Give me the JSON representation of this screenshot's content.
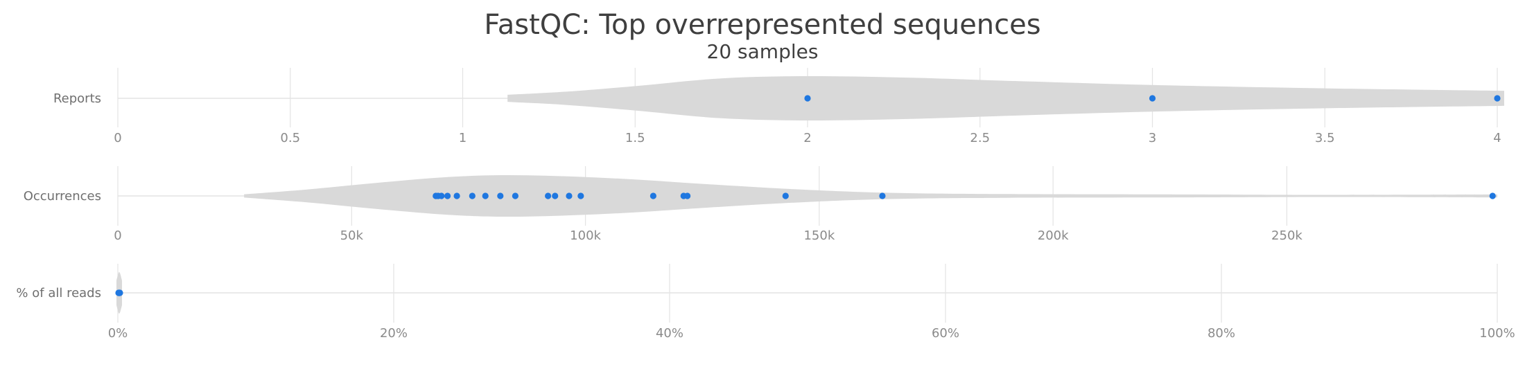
{
  "chart_data": {
    "type": "violin",
    "title": "FastQC: Top overrepresented sequences",
    "subtitle": "20 samples",
    "colors": {
      "point": "#1f77e0",
      "violin": "#d9d9d9",
      "grid": "#e3e3e3",
      "axis_text": "#8a8a8a"
    },
    "panels": [
      {
        "label": "Reports",
        "ticks": [
          0,
          0.5,
          1,
          1.5,
          2,
          2.5,
          3,
          3.5,
          4
        ],
        "tick_labels": [
          "0",
          "0.5",
          "1",
          "1.5",
          "2",
          "2.5",
          "3",
          "3.5",
          "4"
        ],
        "xlim": [
          0,
          4
        ],
        "points": [
          2,
          3,
          4
        ],
        "density": [
          [
            1.13,
            0.16
          ],
          [
            1.3,
            0.3
          ],
          [
            1.5,
            0.55
          ],
          [
            1.75,
            0.9
          ],
          [
            2.0,
            1.0
          ],
          [
            2.3,
            0.93
          ],
          [
            2.6,
            0.78
          ],
          [
            3.0,
            0.6
          ],
          [
            3.5,
            0.45
          ],
          [
            4.02,
            0.34
          ]
        ]
      },
      {
        "label": "Occurrences",
        "ticks": [
          0,
          50000,
          100000,
          150000,
          200000,
          250000
        ],
        "tick_labels": [
          "0",
          "50k",
          "100k",
          "150k",
          "200k",
          "250k"
        ],
        "xlim": [
          0,
          295000
        ],
        "points": [
          68000,
          68500,
          69200,
          70500,
          72500,
          75800,
          78600,
          81800,
          85000,
          92000,
          93500,
          96500,
          99000,
          114500,
          121000,
          121800,
          142800,
          163500,
          294000
        ],
        "density": [
          [
            27000,
            0.08
          ],
          [
            40000,
            0.3
          ],
          [
            55000,
            0.62
          ],
          [
            70000,
            0.9
          ],
          [
            82000,
            1.0
          ],
          [
            95000,
            0.95
          ],
          [
            110000,
            0.8
          ],
          [
            125000,
            0.58
          ],
          [
            145000,
            0.32
          ],
          [
            165000,
            0.15
          ],
          [
            190000,
            0.09
          ],
          [
            230000,
            0.07
          ],
          [
            260000,
            0.05
          ],
          [
            295000,
            0.07
          ]
        ]
      },
      {
        "label": "% of all reads",
        "ticks": [
          0,
          20,
          40,
          60,
          80,
          100
        ],
        "tick_labels": [
          "0%",
          "20%",
          "40%",
          "60%",
          "80%",
          "100%"
        ],
        "xlim": [
          0,
          100
        ],
        "points": [
          0.05,
          0.08,
          0.1,
          0.12,
          0.15
        ],
        "density": [
          [
            -0.1,
            0.6
          ],
          [
            0.1,
            1.0
          ],
          [
            0.3,
            0.6
          ]
        ]
      }
    ]
  }
}
